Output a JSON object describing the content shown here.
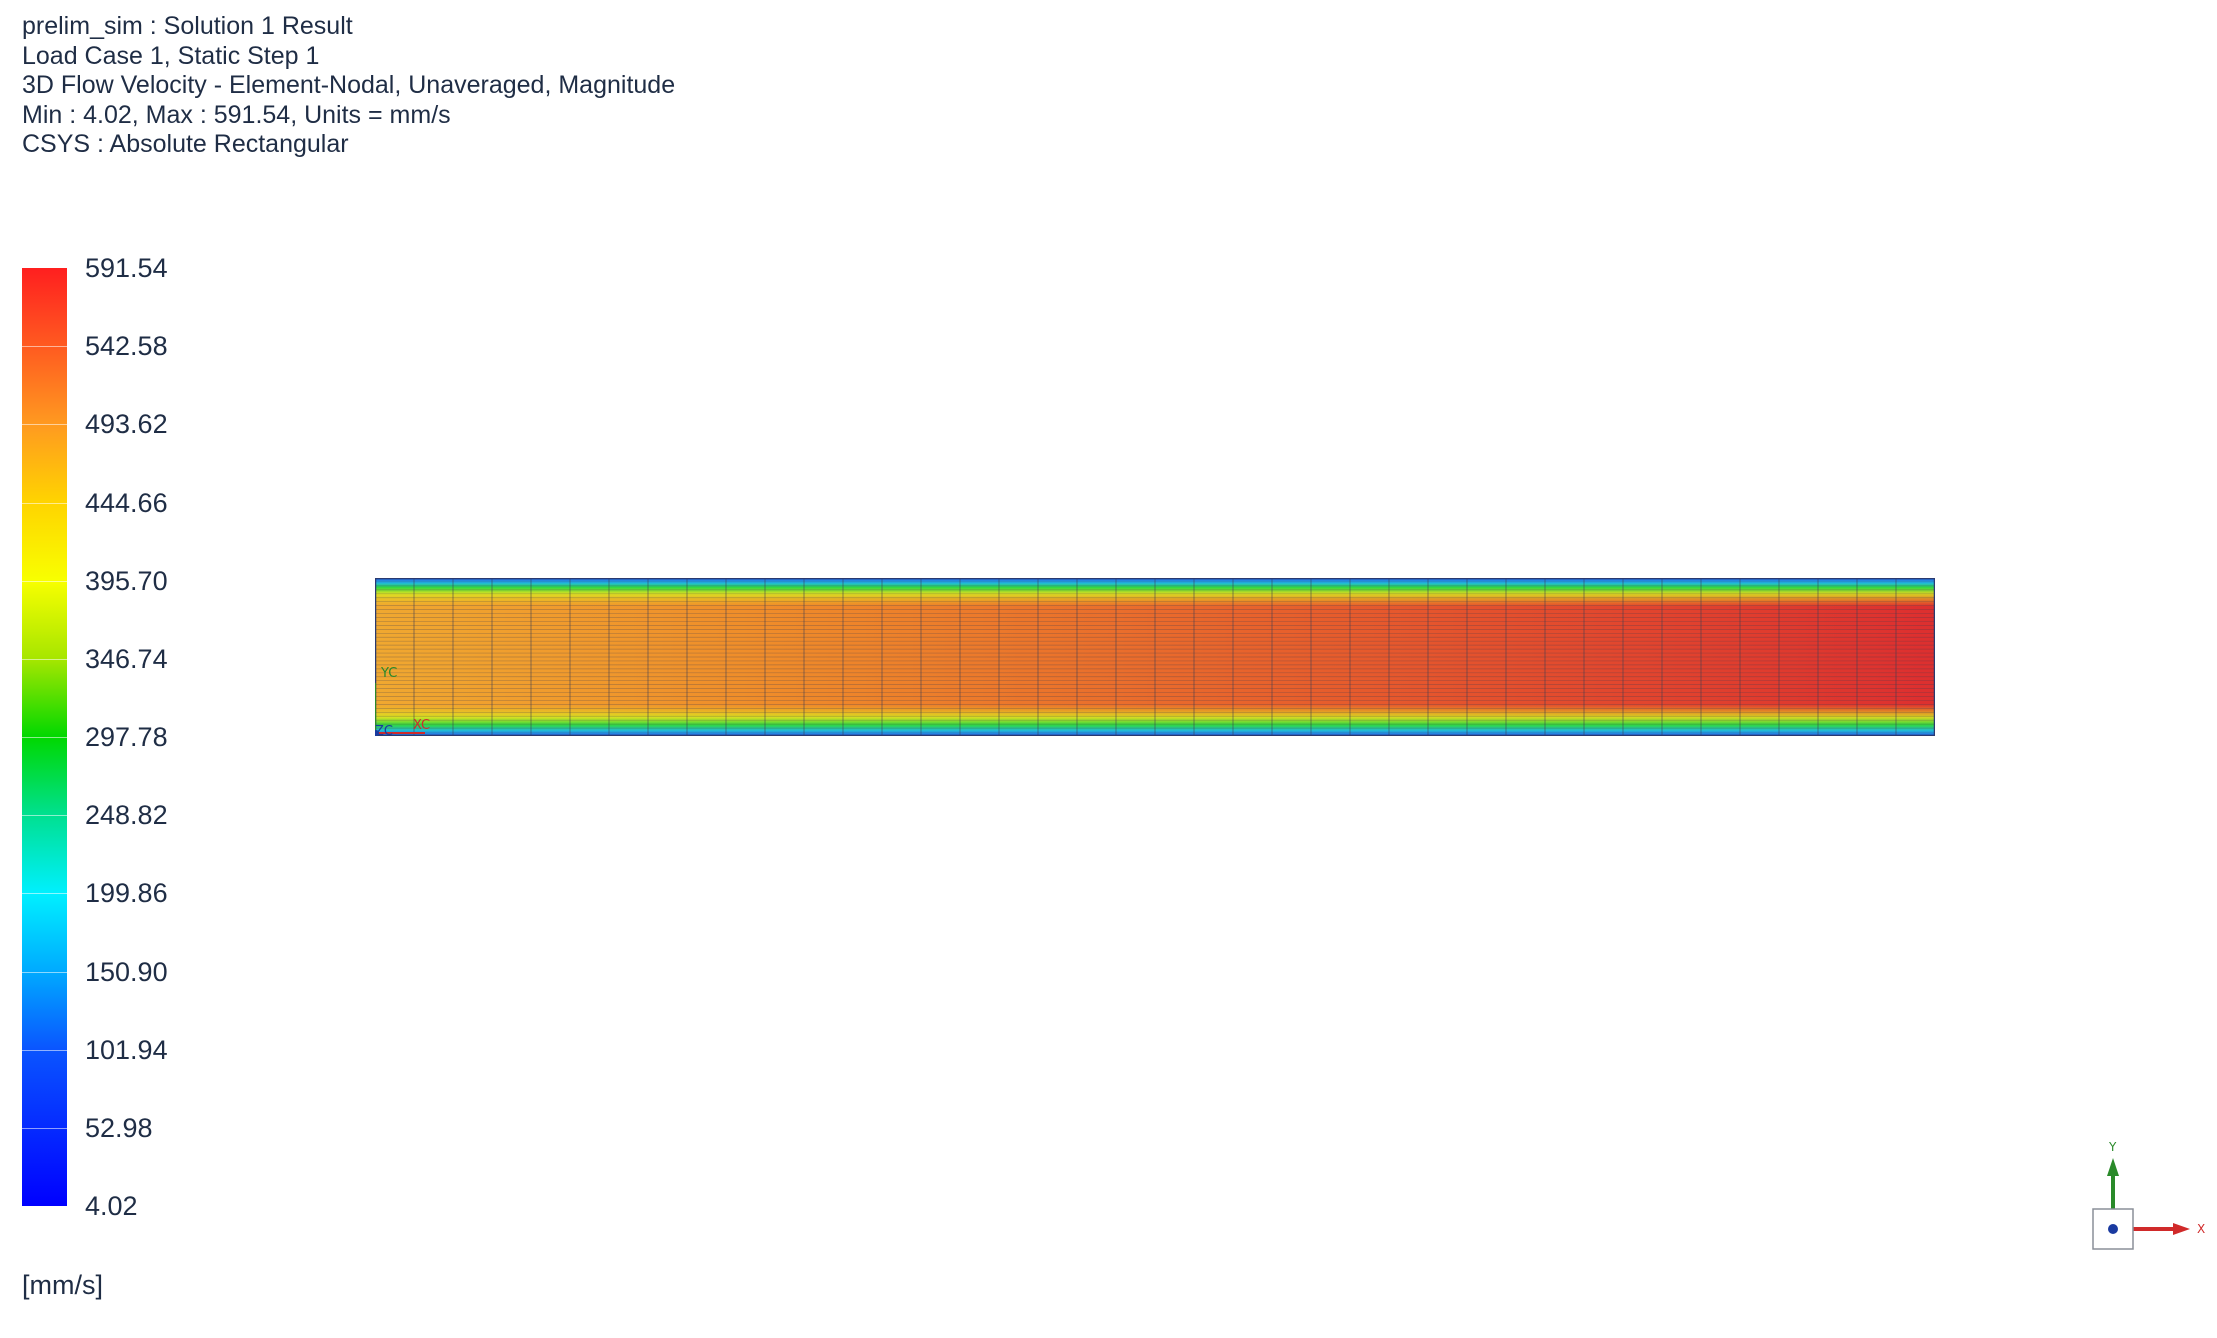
{
  "header": {
    "line1": "prelim_sim : Solution 1 Result",
    "line2": "Load Case 1, Static Step 1",
    "line3": "3D Flow Velocity - Element-Nodal, Unaveraged, Magnitude",
    "line4": "Min : 4.02, Max : 591.54, Units = mm/s",
    "line5": "CSYS : Absolute Rectangular"
  },
  "legend": {
    "labels": [
      "591.54",
      "542.58",
      "493.62",
      "444.66",
      "395.70",
      "346.74",
      "297.78",
      "248.82",
      "199.86",
      "150.90",
      "101.94",
      "52.98",
      "4.02"
    ],
    "units": "[mm/s]",
    "colors": {
      "max": "#ff1f1f",
      "mid": "#00d800",
      "min": "#0000ff"
    }
  },
  "model": {
    "csys_labels": {
      "y": "YC",
      "x": "XC",
      "z": "ZC"
    },
    "mesh_columns": 40,
    "mesh_rows": 40,
    "colors": {
      "inlet": "#f0a830",
      "core_start": "#f08a28",
      "core_end": "#e03030",
      "wall": "#2a4fd8"
    }
  },
  "triad": {
    "y_label": "Y",
    "x_label": "X",
    "y_color": "#2a8a2a",
    "x_color": "#d02a2a",
    "origin_color": "#1a3aa0"
  }
}
